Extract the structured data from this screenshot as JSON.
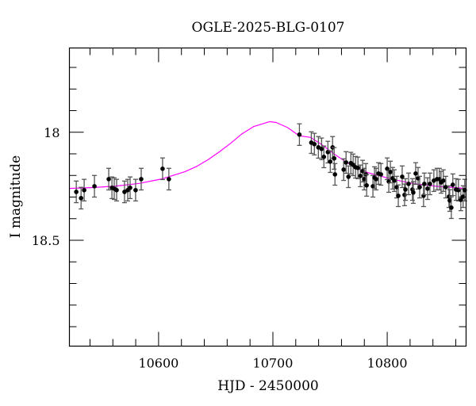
{
  "chart_data": {
    "type": "scatter",
    "title": "OGLE-2025-BLG-0107",
    "xlabel": "HJD - 2450000",
    "ylabel": "I magnitude",
    "xlim": [
      10522,
      10869
    ],
    "ylim": [
      18.99,
      17.61
    ],
    "y_inverted": true,
    "x_ticks": [
      10600,
      10700,
      10800
    ],
    "x_tick_labels": [
      "10600",
      "10700",
      "10800"
    ],
    "x_minor_step": 20,
    "y_ticks": [
      18,
      18.5
    ],
    "y_tick_labels": [
      "18",
      "18.5"
    ],
    "y_minor_step": 0.1,
    "grid": false,
    "colors": {
      "points": "#000000",
      "errorbars": "#555555",
      "model": "#ff00ff",
      "axes": "#000000"
    },
    "series": [
      {
        "type": "scatter_errorbar",
        "x": [
          10528.0,
          10532.2,
          10534.9,
          10543.9,
          10556.4,
          10559.2,
          10561.2,
          10563.3,
          10570.2,
          10573.0,
          10575.1,
          10579.9,
          10584.8,
          10603.5,
          10609.0,
          10723.2,
          10733.6,
          10736.3,
          10739.8,
          10742.6,
          10744.6,
          10748.1,
          10750.2,
          10752.2,
          10753.6,
          10754.3,
          10761.9,
          10764.0,
          10766.1,
          10768.2,
          10770.2,
          10772.3,
          10774.4,
          10776.5,
          10778.5,
          10779.9,
          10781.3,
          10782.0,
          10787.5,
          10788.9,
          10790.3,
          10792.4,
          10794.5,
          10800.0,
          10801.4,
          10802.8,
          10804.8,
          10806.2,
          10808.3,
          10809.7,
          10813.1,
          10815.2,
          10815.9,
          10818.7,
          10822.1,
          10822.8,
          10824.9,
          10827.0,
          10828.4,
          10831.8,
          10832.5,
          10835.3,
          10837.4,
          10840.8,
          10843.6,
          10845.7,
          10847.1,
          10849.1,
          10851.2,
          10854.0,
          10854.7,
          10856.1,
          10857.4,
          10860.2,
          10862.3,
          10864.4,
          10866.4,
          10867.8
        ],
        "y": [
          18.276,
          18.305,
          18.268,
          18.25,
          18.217,
          18.257,
          18.261,
          18.268,
          18.276,
          18.268,
          18.257,
          18.268,
          18.217,
          18.169,
          18.217,
          18.011,
          18.048,
          18.055,
          18.07,
          18.077,
          18.114,
          18.092,
          18.136,
          18.07,
          18.121,
          18.195,
          18.173,
          18.14,
          18.206,
          18.143,
          18.151,
          18.162,
          18.165,
          18.202,
          18.18,
          18.217,
          18.195,
          18.246,
          18.25,
          18.21,
          18.217,
          18.191,
          18.195,
          18.169,
          18.228,
          18.184,
          18.213,
          18.224,
          18.254,
          18.294,
          18.206,
          18.29,
          18.265,
          18.239,
          18.265,
          18.279,
          18.191,
          18.213,
          18.254,
          18.294,
          18.239,
          18.261,
          18.239,
          18.224,
          18.217,
          18.217,
          18.232,
          18.224,
          18.254,
          18.298,
          18.316,
          18.349,
          18.243,
          18.265,
          18.268,
          18.313,
          18.298,
          18.268
        ],
        "yerr": 0.05
      },
      {
        "type": "line",
        "x": [
          10522,
          10543,
          10563,
          10583,
          10603,
          10623,
          10633,
          10643,
          10653,
          10663,
          10673,
          10683,
          10697,
          10703,
          10713,
          10723,
          10733,
          10743,
          10753,
          10763,
          10773,
          10783,
          10803,
          10823,
          10843,
          10869
        ],
        "y": [
          18.26,
          18.256,
          18.249,
          18.237,
          18.216,
          18.183,
          18.159,
          18.128,
          18.091,
          18.051,
          18.007,
          17.974,
          17.951,
          17.955,
          17.979,
          18.016,
          18.024,
          18.058,
          18.099,
          18.134,
          18.164,
          18.187,
          18.216,
          18.238,
          18.25,
          18.26
        ]
      }
    ]
  }
}
